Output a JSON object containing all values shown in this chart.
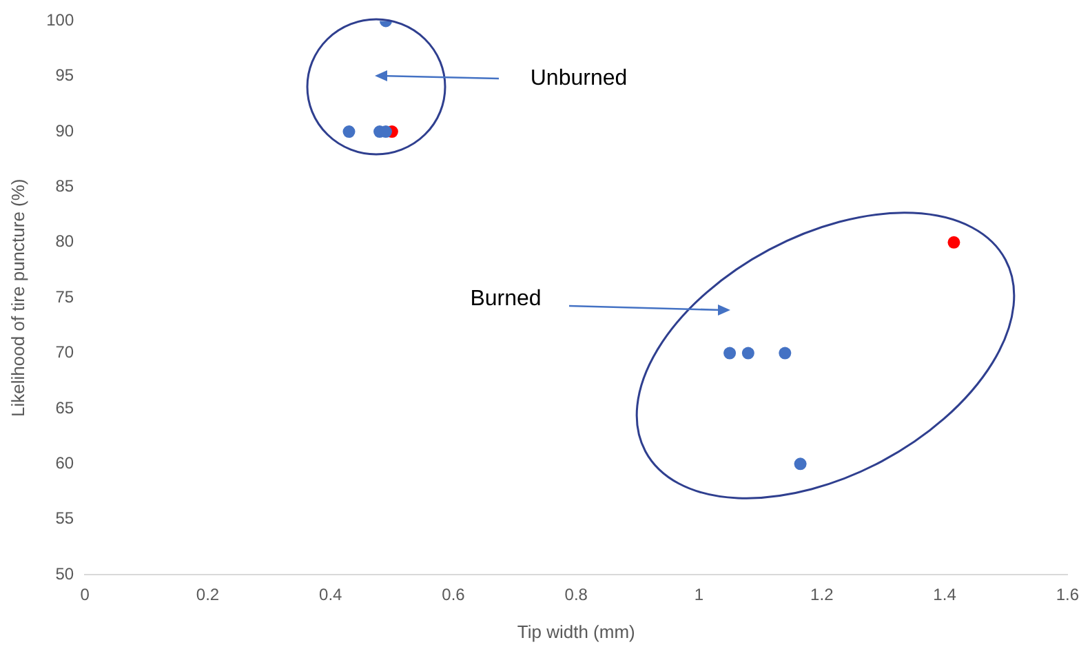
{
  "chart_data": {
    "type": "scatter",
    "xlabel": "Tip width (mm)",
    "ylabel": "Likelihood of tire puncture (%)",
    "series": [
      {
        "color": "#4472c4",
        "x": [
          0.49,
          0.43,
          0.48,
          0.49,
          1.05,
          1.08,
          1.14,
          1.165
        ],
        "values": [
          100,
          90,
          90,
          90,
          70,
          70,
          70,
          60
        ]
      },
      {
        "color": "#ff0000",
        "x": [
          0.5,
          1.415
        ],
        "values": [
          90,
          80
        ]
      }
    ],
    "xlim": [
      0,
      1.6
    ],
    "xticks": [
      0,
      0.2,
      0.4,
      0.6,
      0.8,
      1,
      1.2,
      1.4,
      1.6
    ],
    "ylim": [
      50,
      100
    ],
    "yticks": [
      50,
      55,
      60,
      65,
      70,
      75,
      80,
      85,
      90,
      95,
      100
    ],
    "grid": false,
    "legend": false,
    "marker": "circle",
    "annotations": [
      "Unburned",
      "Burned"
    ]
  }
}
